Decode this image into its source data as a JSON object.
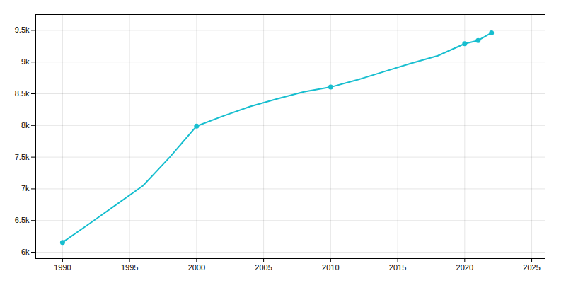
{
  "chart_data": {
    "type": "line",
    "x": [
      1990,
      1992,
      1994,
      1996,
      1998,
      2000,
      2002,
      2004,
      2006,
      2008,
      2010,
      2012,
      2014,
      2016,
      2018,
      2020,
      2021,
      2022
    ],
    "series": [
      {
        "type": "line",
        "color": "#17becf",
        "values": [
          6155,
          6450,
          6750,
          7050,
          7500,
          7990,
          8150,
          8300,
          8420,
          8530,
          8605,
          8720,
          8850,
          8980,
          9100,
          9290,
          9340,
          9460
        ]
      },
      {
        "type": "scatter",
        "color": "#17becf",
        "marker": "circle",
        "values": [
          6155,
          null,
          null,
          null,
          null,
          7990,
          null,
          null,
          null,
          null,
          8605,
          null,
          null,
          null,
          null,
          9290,
          9340,
          9460
        ]
      }
    ],
    "xlim": [
      1988,
      2026
    ],
    "xticks": [
      1990,
      1995,
      2000,
      2005,
      2010,
      2015,
      2020,
      2025
    ],
    "ylim": [
      5900,
      9750
    ],
    "yticks": [
      {
        "value": 6000,
        "label": "6k"
      },
      {
        "value": 6500,
        "label": "6.5k"
      },
      {
        "value": 7000,
        "label": "7k"
      },
      {
        "value": 7500,
        "label": "7.5k"
      },
      {
        "value": 8000,
        "label": "8k"
      },
      {
        "value": 8500,
        "label": "8.5k"
      },
      {
        "value": 9000,
        "label": "9k"
      },
      {
        "value": 9500,
        "label": "9.5k"
      }
    ],
    "grid": true
  }
}
